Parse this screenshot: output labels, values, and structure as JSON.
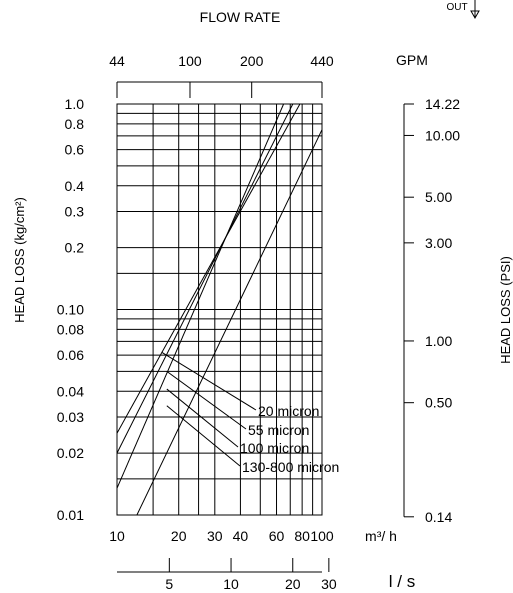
{
  "chart_data": {
    "type": "line",
    "title": "FLOW RATE",
    "corner_label": "OUT",
    "xlabel_primary": "m³/ h",
    "xlabel_secondary": "l / s",
    "xlabel_top": "GPM",
    "ylabel_left": "HEAD LOSS (kg/cm²)",
    "ylabel_right": "HEAD LOSS (PSI)",
    "x_scale": "log",
    "y_scale": "log",
    "xlim": [
      10,
      100
    ],
    "ylim": [
      0.01,
      1.0
    ],
    "grid": true,
    "x_ticks": [
      "10",
      "20",
      "30",
      "40",
      "60",
      "80",
      "100"
    ],
    "x_tick_values": [
      10,
      20,
      30,
      40,
      60,
      80,
      100
    ],
    "y_ticks": [
      "1.0",
      "0.8",
      "0.6",
      "0.4",
      "0.3",
      "0.2",
      "0.10",
      "0.08",
      "0.06",
      "0.04",
      "0.03",
      "0.02",
      "0.01"
    ],
    "y_tick_values": [
      1.0,
      0.8,
      0.6,
      0.4,
      0.3,
      0.2,
      0.1,
      0.08,
      0.06,
      0.04,
      0.03,
      0.02,
      0.01
    ],
    "gpm_ticks": [
      "44",
      "100",
      "200",
      "440"
    ],
    "gpm_tick_values": [
      10,
      22.7,
      45.4,
      100
    ],
    "psi_ticks": [
      "14.22",
      "10.00",
      "5.00",
      "3.00",
      "1.00",
      "0.50",
      "0.14"
    ],
    "psi_tick_values": [
      1.0,
      0.703,
      0.352,
      0.211,
      0.0703,
      0.0352,
      0.0098
    ],
    "ls_ticks": [
      "5",
      "10",
      "20",
      "30"
    ],
    "ls_tick_values": [
      18,
      36,
      72,
      108
    ],
    "series": [
      {
        "name": "20 micron",
        "x": [
          10,
          78
        ],
        "y": [
          0.025,
          1.0
        ]
      },
      {
        "name": "55 micron",
        "x": [
          10,
          72
        ],
        "y": [
          0.02,
          1.0
        ]
      },
      {
        "name": "100 micron",
        "x": [
          10,
          65
        ],
        "y": [
          0.0135,
          1.0
        ]
      },
      {
        "name": "130-800 micron",
        "x": [
          12.5,
          100
        ],
        "y": [
          0.01,
          0.75
        ]
      }
    ],
    "annotation_targets": [
      {
        "x": 16.5,
        "y": 0.062
      },
      {
        "x": 17.5,
        "y": 0.05
      },
      {
        "x": 17.5,
        "y": 0.041
      },
      {
        "x": 17.5,
        "y": 0.034
      }
    ]
  }
}
